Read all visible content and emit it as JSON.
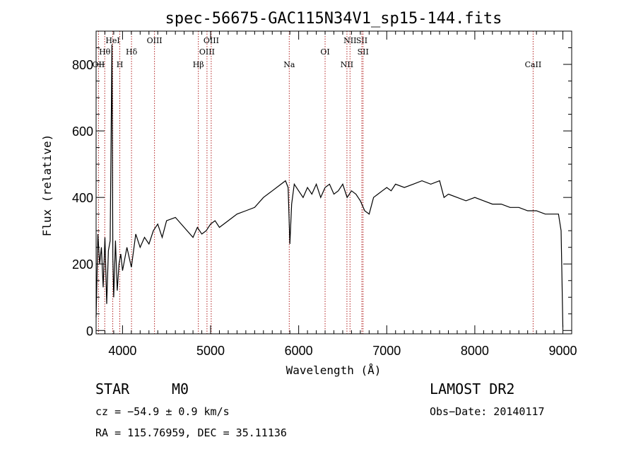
{
  "chart_data": {
    "type": "line",
    "title": "spec-56675-GAC115N34V1_sp15-144.fits",
    "xlabel": "Wavelength (Å)",
    "ylabel": "Flux (relative)",
    "xlim": [
      3700,
      9100
    ],
    "ylim": [
      -10,
      900
    ],
    "x_ticks": [
      4000,
      5000,
      6000,
      7000,
      8000,
      9000
    ],
    "y_ticks": [
      0,
      200,
      400,
      600,
      800
    ],
    "grid": false,
    "series": [
      {
        "x": [
          3700,
          3720,
          3740,
          3760,
          3780,
          3800,
          3820,
          3840,
          3860,
          3880,
          3890,
          3900,
          3920,
          3940,
          3960,
          3980,
          4000,
          4050,
          4100,
          4150,
          4200,
          4250,
          4300,
          4350,
          4400,
          4450,
          4500,
          4600,
          4700,
          4800,
          4850,
          4900,
          4950,
          5000,
          5050,
          5100,
          5200,
          5300,
          5400,
          5500,
          5600,
          5700,
          5800,
          5850,
          5880,
          5900,
          5920,
          5950,
          6000,
          6050,
          6100,
          6150,
          6200,
          6250,
          6300,
          6350,
          6400,
          6450,
          6500,
          6550,
          6600,
          6650,
          6700,
          6750,
          6800,
          6850,
          6900,
          6950,
          7000,
          7050,
          7100,
          7200,
          7300,
          7400,
          7500,
          7600,
          7650,
          7700,
          7800,
          7900,
          8000,
          8100,
          8200,
          8300,
          8400,
          8500,
          8600,
          8700,
          8800,
          8900,
          8950,
          8980,
          9000
        ],
        "y": [
          40,
          290,
          200,
          250,
          130,
          280,
          80,
          240,
          270,
          860,
          220,
          100,
          270,
          120,
          200,
          230,
          180,
          250,
          190,
          290,
          250,
          280,
          260,
          300,
          320,
          280,
          330,
          340,
          310,
          280,
          310,
          290,
          300,
          320,
          330,
          310,
          330,
          350,
          360,
          370,
          400,
          420,
          440,
          450,
          430,
          260,
          380,
          440,
          420,
          400,
          430,
          410,
          440,
          400,
          430,
          440,
          410,
          420,
          440,
          400,
          420,
          410,
          390,
          360,
          350,
          400,
          410,
          420,
          430,
          420,
          440,
          430,
          440,
          450,
          440,
          450,
          400,
          410,
          400,
          390,
          400,
          390,
          380,
          380,
          370,
          370,
          360,
          360,
          350,
          350,
          350,
          300,
          10
        ]
      }
    ],
    "lines": [
      {
        "name": "OII",
        "x": 3727,
        "row": 3
      },
      {
        "name": "Hθ",
        "x": 3798,
        "row": 2
      },
      {
        "name": "HeI",
        "x": 3889,
        "row": 1
      },
      {
        "name": "H",
        "x": 3969,
        "row": 3
      },
      {
        "name": "Hδ",
        "x": 4102,
        "row": 2
      },
      {
        "name": "OIII",
        "x": 4363,
        "row": 1
      },
      {
        "name": "Hβ",
        "x": 4861,
        "row": 3
      },
      {
        "name": "OIII",
        "x": 4959,
        "row": 2
      },
      {
        "name": "OIII",
        "x": 5007,
        "row": 1
      },
      {
        "name": "Na",
        "x": 5893,
        "row": 3
      },
      {
        "name": "OI",
        "x": 6300,
        "row": 2
      },
      {
        "name": "NII",
        "x": 6548,
        "row": 3
      },
      {
        "name": "NII",
        "x": 6583,
        "row": 1
      },
      {
        "name": "SII",
        "x": 6717,
        "row": 1
      },
      {
        "name": "SII",
        "x": 6731,
        "row": 2
      },
      {
        "name": "CaII",
        "x": 8662,
        "row": 3
      }
    ]
  },
  "info": {
    "class": "STAR",
    "subclass": "M0",
    "survey": "LAMOST DR2",
    "cz": "cz = −54.9 ± 0.9 km/s",
    "obs_date": "Obs−Date: 20140117",
    "radec": "RA = 115.76959, DEC =  35.11136"
  }
}
